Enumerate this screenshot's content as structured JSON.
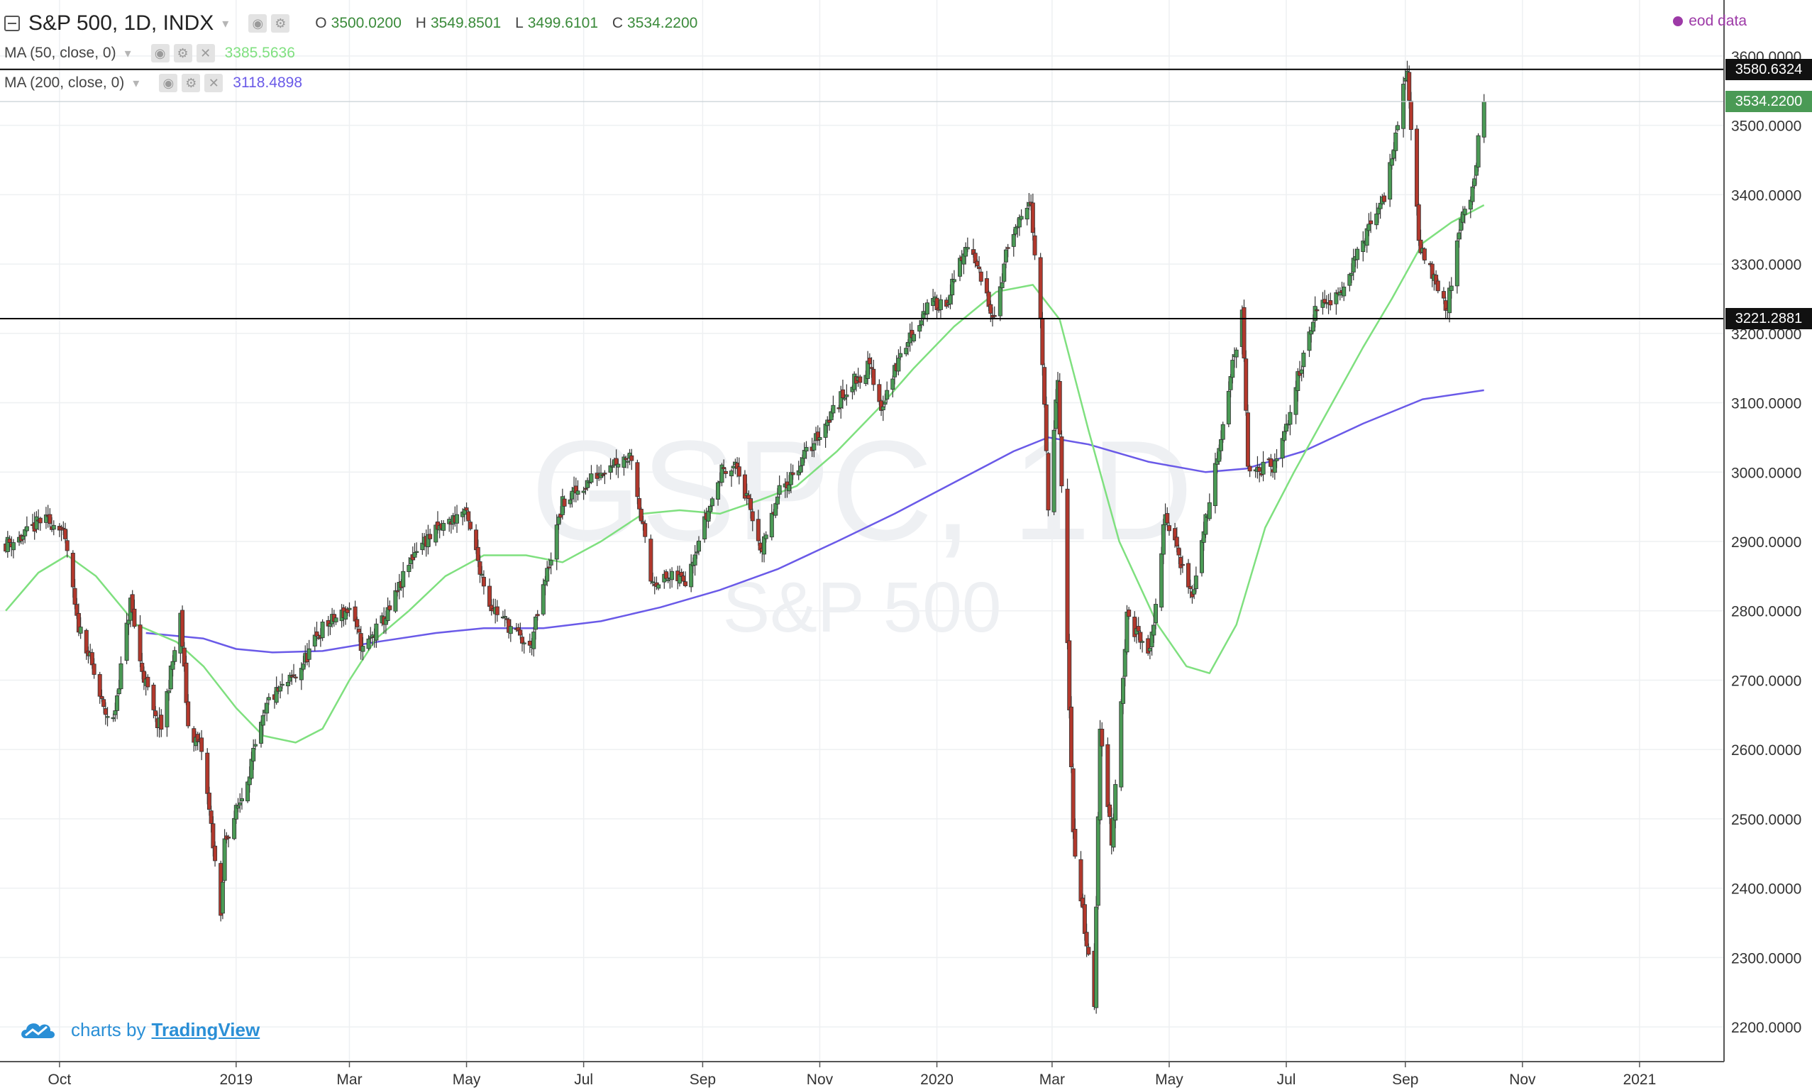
{
  "header": {
    "symbol_line": "S&P 500, 1D, INDX",
    "open_label": "O",
    "open": "3500.0200",
    "high_label": "H",
    "high": "3549.8501",
    "low_label": "L",
    "low": "3499.6101",
    "close_label": "C",
    "close": "3534.2200",
    "data_source": "eod data"
  },
  "indicators": [
    {
      "label": "MA (50, close, 0)",
      "value": "3385.5636",
      "color": "#7fe07f"
    },
    {
      "label": "MA (200, close, 0)",
      "value": "3118.4898",
      "color": "#6a5ae8"
    }
  ],
  "watermark": {
    "symbol": "GSPC, 1D",
    "name": "S&P 500"
  },
  "branding": {
    "prefix": "charts by",
    "name": "TradingView"
  },
  "colors": {
    "up": "#4a9a55",
    "down": "#b2382c",
    "ma50": "#7fe07f",
    "ma200": "#6a5ae8",
    "line": "#000000"
  },
  "chart_data": {
    "type": "candlestick",
    "title": "S&P 500, 1D, INDX",
    "y_ticks": [
      2200,
      2300,
      2400,
      2500,
      2600,
      2700,
      2800,
      2900,
      3000,
      3100,
      3200,
      3300,
      3400,
      3500,
      3600
    ],
    "y_tick_labels": [
      "2200.0000",
      "2300.0000",
      "2400.0000",
      "2500.0000",
      "2600.0000",
      "2700.0000",
      "2800.0000",
      "2900.0000",
      "3000.0000",
      "3100.0000",
      "3200.0000",
      "3300.0000",
      "3400.0000",
      "3500.0000",
      "3600.0000"
    ],
    "x_ticks": [
      {
        "date": "2018-10-01",
        "label": "Oct"
      },
      {
        "date": "2019-01-01",
        "label": "2019"
      },
      {
        "date": "2019-03-01",
        "label": "Mar"
      },
      {
        "date": "2019-05-01",
        "label": "May"
      },
      {
        "date": "2019-07-01",
        "label": "Jul"
      },
      {
        "date": "2019-09-01",
        "label": "Sep"
      },
      {
        "date": "2019-11-01",
        "label": "Nov"
      },
      {
        "date": "2020-01-01",
        "label": "2020"
      },
      {
        "date": "2020-03-01",
        "label": "Mar"
      },
      {
        "date": "2020-05-01",
        "label": "May"
      },
      {
        "date": "2020-07-01",
        "label": "Jul"
      },
      {
        "date": "2020-09-01",
        "label": "Sep"
      },
      {
        "date": "2020-11-01",
        "label": "Nov"
      },
      {
        "date": "2021-01-01",
        "label": "2021"
      }
    ],
    "x_range": [
      "2018-08-31",
      "2021-02-14"
    ],
    "y_range": [
      2150,
      3650
    ],
    "horizontal_lines": [
      {
        "value": 3580.6324,
        "label": "3580.6324"
      },
      {
        "value": 3221.2881,
        "label": "3221.2881"
      }
    ],
    "last_price": {
      "value": 3534.22,
      "label": "3534.2200"
    },
    "close_path": [
      [
        "2018-09-03",
        2897
      ],
      [
        "2018-09-12",
        2906
      ],
      [
        "2018-09-21",
        2930
      ],
      [
        "2018-10-01",
        2925
      ],
      [
        "2018-10-05",
        2886
      ],
      [
        "2018-10-10",
        2785
      ],
      [
        "2018-10-15",
        2750
      ],
      [
        "2018-10-24",
        2656
      ],
      [
        "2018-10-29",
        2641
      ],
      [
        "2018-11-07",
        2813
      ],
      [
        "2018-11-12",
        2726
      ],
      [
        "2018-11-20",
        2641
      ],
      [
        "2018-11-23",
        2632
      ],
      [
        "2018-12-03",
        2790
      ],
      [
        "2018-12-07",
        2633
      ],
      [
        "2018-12-14",
        2599
      ],
      [
        "2018-12-20",
        2467
      ],
      [
        "2018-12-24",
        2351
      ],
      [
        "2018-12-26",
        2467
      ],
      [
        "2019-01-04",
        2532
      ],
      [
        "2019-01-18",
        2670
      ],
      [
        "2019-02-01",
        2706
      ],
      [
        "2019-02-15",
        2775
      ],
      [
        "2019-03-01",
        2803
      ],
      [
        "2019-03-08",
        2743
      ],
      [
        "2019-03-22",
        2800
      ],
      [
        "2019-04-05",
        2892
      ],
      [
        "2019-04-30",
        2945
      ],
      [
        "2019-05-13",
        2811
      ],
      [
        "2019-06-03",
        2744
      ],
      [
        "2019-06-20",
        2954
      ],
      [
        "2019-07-15",
        3014
      ],
      [
        "2019-07-26",
        3025
      ],
      [
        "2019-08-05",
        2844
      ],
      [
        "2019-08-23",
        2847
      ],
      [
        "2019-09-12",
        3009
      ],
      [
        "2019-09-19",
        3006
      ],
      [
        "2019-10-02",
        2887
      ],
      [
        "2019-10-11",
        2970
      ],
      [
        "2019-10-28",
        3039
      ],
      [
        "2019-11-15",
        3120
      ],
      [
        "2019-11-27",
        3153
      ],
      [
        "2019-12-03",
        3093
      ],
      [
        "2019-12-13",
        3168
      ],
      [
        "2019-12-27",
        3240
      ],
      [
        "2020-01-06",
        3246
      ],
      [
        "2020-01-17",
        3329
      ],
      [
        "2020-01-31",
        3225
      ],
      [
        "2020-02-07",
        3327
      ],
      [
        "2020-02-19",
        3386
      ],
      [
        "2020-02-24",
        3225
      ],
      [
        "2020-02-28",
        2954
      ],
      [
        "2020-03-04",
        3130
      ],
      [
        "2020-03-09",
        2746
      ],
      [
        "2020-03-12",
        2480
      ],
      [
        "2020-03-16",
        2386
      ],
      [
        "2020-03-23",
        2237
      ],
      [
        "2020-03-26",
        2630
      ],
      [
        "2020-04-01",
        2470
      ],
      [
        "2020-04-09",
        2789
      ],
      [
        "2020-04-21",
        2737
      ],
      [
        "2020-04-29",
        2939
      ],
      [
        "2020-05-13",
        2820
      ],
      [
        "2020-06-08",
        3232
      ],
      [
        "2020-06-11",
        3002
      ],
      [
        "2020-06-26",
        3009
      ],
      [
        "2020-07-15",
        3226
      ],
      [
        "2020-07-31",
        3271
      ],
      [
        "2020-08-21",
        3397
      ],
      [
        "2020-09-02",
        3580
      ],
      [
        "2020-09-08",
        3332
      ],
      [
        "2020-09-23",
        3237
      ],
      [
        "2020-09-30",
        3363
      ],
      [
        "2020-10-07",
        3419
      ],
      [
        "2020-10-09",
        3477
      ],
      [
        "2020-10-12",
        3534
      ]
    ],
    "ma50_path": [
      [
        "2018-09-03",
        2800
      ],
      [
        "2018-09-20",
        2855
      ],
      [
        "2018-10-05",
        2880
      ],
      [
        "2018-10-20",
        2850
      ],
      [
        "2018-11-10",
        2780
      ],
      [
        "2018-12-01",
        2755
      ],
      [
        "2018-12-15",
        2720
      ],
      [
        "2019-01-01",
        2660
      ],
      [
        "2019-01-15",
        2620
      ],
      [
        "2019-02-01",
        2610
      ],
      [
        "2019-02-15",
        2630
      ],
      [
        "2019-03-01",
        2700
      ],
      [
        "2019-03-15",
        2760
      ],
      [
        "2019-04-01",
        2800
      ],
      [
        "2019-04-20",
        2850
      ],
      [
        "2019-05-10",
        2880
      ],
      [
        "2019-06-01",
        2880
      ],
      [
        "2019-06-20",
        2870
      ],
      [
        "2019-07-10",
        2900
      ],
      [
        "2019-08-01",
        2940
      ],
      [
        "2019-08-20",
        2945
      ],
      [
        "2019-09-10",
        2940
      ],
      [
        "2019-10-01",
        2960
      ],
      [
        "2019-10-20",
        2980
      ],
      [
        "2019-11-10",
        3030
      ],
      [
        "2019-12-01",
        3090
      ],
      [
        "2019-12-20",
        3150
      ],
      [
        "2020-01-10",
        3210
      ],
      [
        "2020-02-01",
        3260
      ],
      [
        "2020-02-20",
        3270
      ],
      [
        "2020-03-05",
        3220
      ],
      [
        "2020-03-20",
        3060
      ],
      [
        "2020-04-05",
        2900
      ],
      [
        "2020-04-25",
        2780
      ],
      [
        "2020-05-10",
        2720
      ],
      [
        "2020-05-22",
        2710
      ],
      [
        "2020-06-05",
        2780
      ],
      [
        "2020-06-20",
        2920
      ],
      [
        "2020-07-05",
        3000
      ],
      [
        "2020-07-25",
        3100
      ],
      [
        "2020-08-10",
        3180
      ],
      [
        "2020-08-25",
        3250
      ],
      [
        "2020-09-10",
        3330
      ],
      [
        "2020-09-25",
        3360
      ],
      [
        "2020-10-12",
        3385
      ]
    ],
    "ma200_path": [
      [
        "2018-11-15",
        2768
      ],
      [
        "2018-12-15",
        2760
      ],
      [
        "2019-01-01",
        2745
      ],
      [
        "2019-01-20",
        2740
      ],
      [
        "2019-02-15",
        2742
      ],
      [
        "2019-03-15",
        2755
      ],
      [
        "2019-04-15",
        2768
      ],
      [
        "2019-05-10",
        2775
      ],
      [
        "2019-06-10",
        2775
      ],
      [
        "2019-07-10",
        2785
      ],
      [
        "2019-08-10",
        2805
      ],
      [
        "2019-09-10",
        2830
      ],
      [
        "2019-10-10",
        2860
      ],
      [
        "2019-11-10",
        2900
      ],
      [
        "2019-12-10",
        2940
      ],
      [
        "2020-01-10",
        2985
      ],
      [
        "2020-02-10",
        3030
      ],
      [
        "2020-02-28",
        3050
      ],
      [
        "2020-03-20",
        3040
      ],
      [
        "2020-04-20",
        3015
      ],
      [
        "2020-05-20",
        3000
      ],
      [
        "2020-06-10",
        3005
      ],
      [
        "2020-07-10",
        3030
      ],
      [
        "2020-08-10",
        3070
      ],
      [
        "2020-09-10",
        3105
      ],
      [
        "2020-10-12",
        3118
      ]
    ]
  }
}
